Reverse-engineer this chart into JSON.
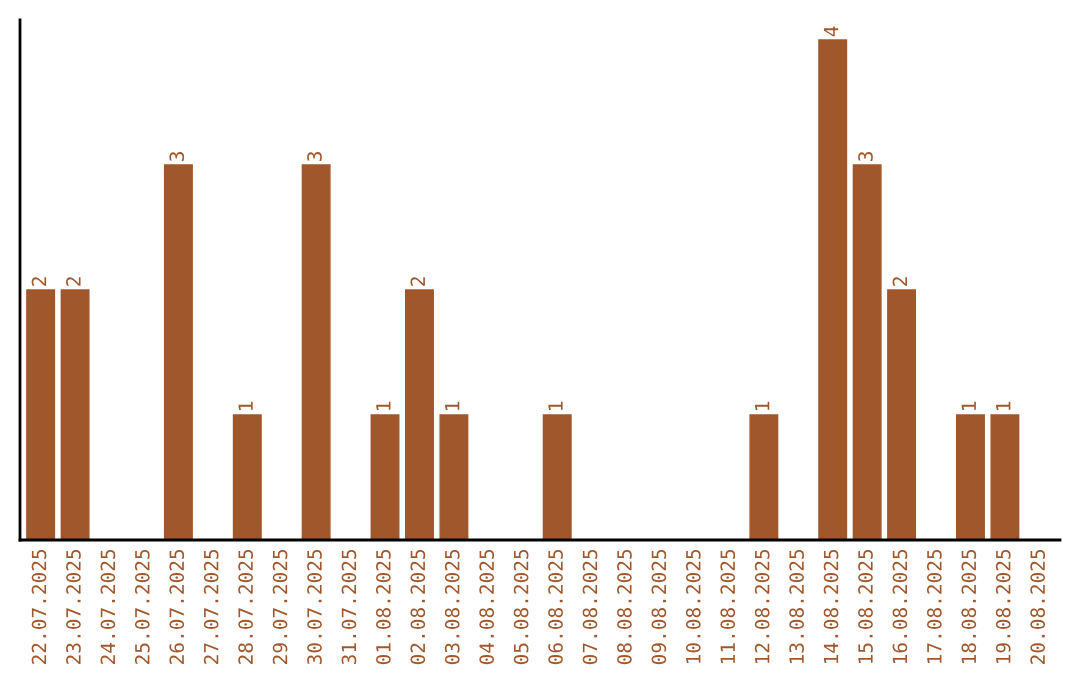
{
  "chart_data": {
    "type": "bar",
    "categories": [
      "22.07.2025",
      "23.07.2025",
      "24.07.2025",
      "25.07.2025",
      "26.07.2025",
      "27.07.2025",
      "28.07.2025",
      "29.07.2025",
      "30.07.2025",
      "31.07.2025",
      "01.08.2025",
      "02.08.2025",
      "03.08.2025",
      "04.08.2025",
      "05.08.2025",
      "06.08.2025",
      "07.08.2025",
      "08.08.2025",
      "09.08.2025",
      "10.08.2025",
      "11.08.2025",
      "12.08.2025",
      "13.08.2025",
      "14.08.2025",
      "15.08.2025",
      "16.08.2025",
      "17.08.2025",
      "18.08.2025",
      "19.08.2025",
      "20.08.2025"
    ],
    "values": [
      2,
      2,
      0,
      0,
      3,
      0,
      1,
      0,
      3,
      0,
      1,
      2,
      1,
      0,
      0,
      1,
      0,
      0,
      0,
      0,
      0,
      1,
      0,
      4,
      3,
      2,
      0,
      1,
      1,
      0
    ],
    "value_labels": [
      "2",
      "2",
      null,
      null,
      "3",
      null,
      "1",
      null,
      "3",
      null,
      "1",
      "2",
      "1",
      null,
      null,
      "1",
      null,
      null,
      null,
      null,
      null,
      "1",
      null,
      "4",
      "3",
      "2",
      null,
      "1",
      "1",
      null
    ],
    "color": "#a0572b",
    "ylim": [
      0,
      4.16
    ],
    "tick_labels": "x",
    "grid": false,
    "legend": false
  }
}
